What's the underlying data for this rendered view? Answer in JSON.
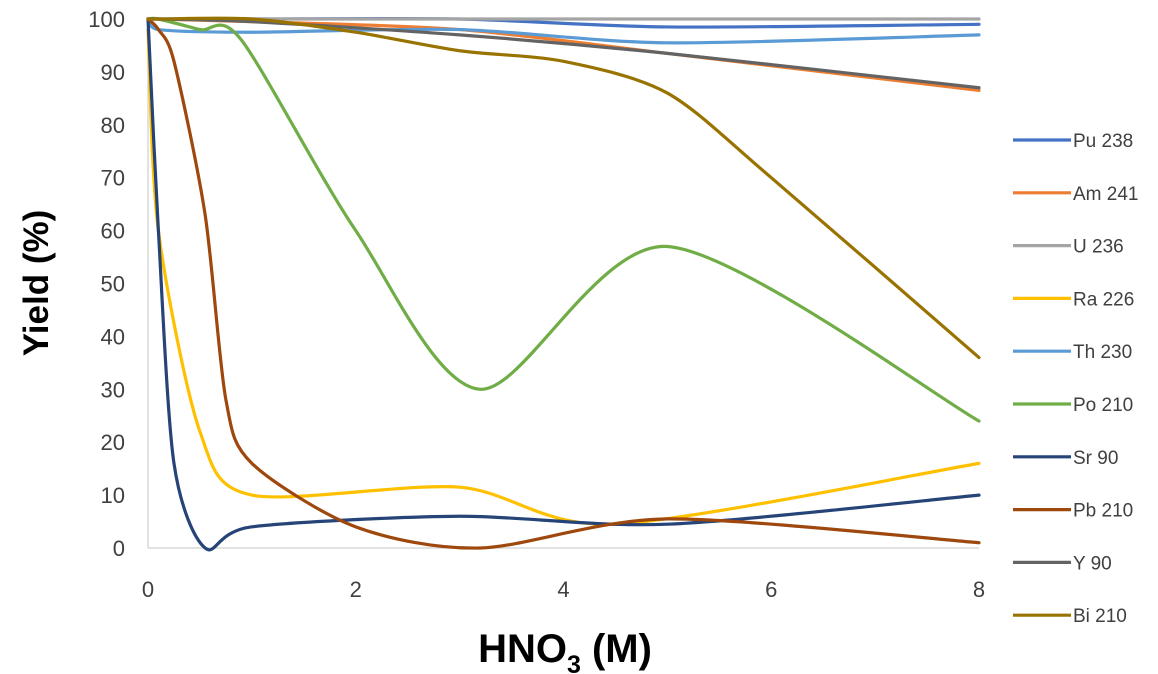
{
  "chart_data": {
    "type": "line",
    "smooth": true,
    "xlabel": "HNO",
    "xlabel_sub": "3",
    "xlabel_suffix": " (M)",
    "ylabel": "Yield (%)",
    "xlim": [
      0,
      8
    ],
    "ylim": [
      0,
      100
    ],
    "xticks": [
      0,
      2,
      4,
      6,
      8
    ],
    "yticks": [
      0,
      10,
      20,
      30,
      40,
      50,
      60,
      70,
      80,
      90,
      100
    ],
    "grid": false,
    "legend_position": "right",
    "series": [
      {
        "name": "Pu 238",
        "color": "#4472C4",
        "x": [
          0,
          0.1,
          1,
          3,
          5,
          8
        ],
        "y": [
          100,
          100,
          100,
          100,
          98.5,
          99
        ]
      },
      {
        "name": "Am 241",
        "color": "#ED7D31",
        "x": [
          0,
          0.1,
          1,
          3,
          5,
          8
        ],
        "y": [
          100,
          100,
          99.5,
          98,
          93.5,
          86.5
        ]
      },
      {
        "name": "U 236",
        "color": "#A5A5A5",
        "x": [
          0,
          0.1,
          1,
          3,
          5,
          8
        ],
        "y": [
          100,
          100,
          100,
          100,
          100,
          100
        ]
      },
      {
        "name": "Ra 226",
        "color": "#FFC000",
        "x": [
          0,
          0.1,
          0.5,
          1,
          3,
          4.5,
          8
        ],
        "y": [
          98,
          60,
          22,
          10,
          11.5,
          4.5,
          16
        ]
      },
      {
        "name": "Th 230",
        "color": "#5B9BD5",
        "x": [
          0,
          0.1,
          1,
          3,
          5,
          8
        ],
        "y": [
          100,
          98,
          97.5,
          98,
          95.5,
          97
        ]
      },
      {
        "name": "Po 210",
        "color": "#70AD47",
        "x": [
          0,
          0.1,
          0.5,
          0.9,
          2,
          3.2,
          5,
          8
        ],
        "y": [
          100,
          100,
          98,
          96,
          60,
          30,
          57,
          24
        ]
      },
      {
        "name": "Sr 90",
        "color": "#264478",
        "x": [
          0,
          0.1,
          0.25,
          0.55,
          1,
          3,
          5,
          8
        ],
        "y": [
          100,
          60,
          16,
          0,
          4,
          6,
          4.5,
          10
        ]
      },
      {
        "name": "Pb 210",
        "color": "#9E480E",
        "x": [
          0,
          0.1,
          0.25,
          0.55,
          0.75,
          1,
          2,
          3.2,
          5,
          8
        ],
        "y": [
          100,
          98,
          92,
          63,
          28,
          16,
          4,
          0,
          5.5,
          1
        ]
      },
      {
        "name": "Y 90",
        "color": "#636363",
        "x": [
          0,
          0.1,
          1,
          3,
          5,
          8
        ],
        "y": [
          100,
          100,
          99.5,
          97,
          93.5,
          87
        ]
      },
      {
        "name": "Bi 210",
        "color": "#997300",
        "x": [
          0,
          0.1,
          1,
          2,
          3,
          4,
          5,
          6,
          8
        ],
        "y": [
          100,
          100,
          100,
          97.5,
          94,
          92,
          86,
          70,
          36
        ]
      }
    ]
  }
}
